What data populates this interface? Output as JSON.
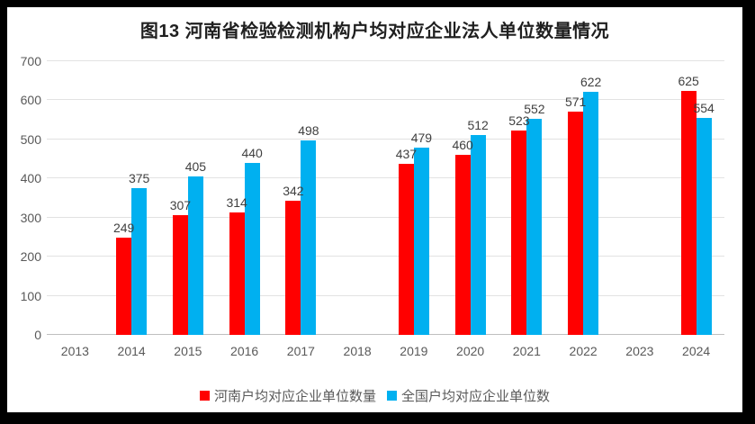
{
  "chart_data": {
    "type": "bar",
    "title": "图13  河南省检验检测机构户均对应企业法人单位数量情况",
    "categories": [
      "2013",
      "2014",
      "2015",
      "2016",
      "2017",
      "2018",
      "2019",
      "2020",
      "2021",
      "2022",
      "2023",
      "2024"
    ],
    "series": [
      {
        "name": "河南户均对应企业单位数量",
        "color": "#ff0000",
        "values": [
          null,
          249,
          307,
          314,
          342,
          null,
          437,
          460,
          523,
          571,
          null,
          625
        ]
      },
      {
        "name": "全国户均对应企业单位数",
        "color": "#00b0f0",
        "values": [
          null,
          375,
          405,
          440,
          498,
          null,
          479,
          512,
          552,
          622,
          null,
          554
        ]
      }
    ],
    "ylim": [
      0,
      700
    ],
    "yticks": [
      0,
      100,
      200,
      300,
      400,
      500,
      600,
      700
    ],
    "grid": true,
    "legend_position": "bottom",
    "data_labels": "outside-end"
  },
  "colors": {
    "frame": "#000000",
    "plot_background": "#ffffff",
    "gridline": "#e2e2e2",
    "axis_line": "#bfbfbf",
    "title_text": "#1f1f1f",
    "axis_text": "#595959",
    "data_label_text": "#404040",
    "series_henan": "#ff0000",
    "series_national": "#00b0f0"
  }
}
